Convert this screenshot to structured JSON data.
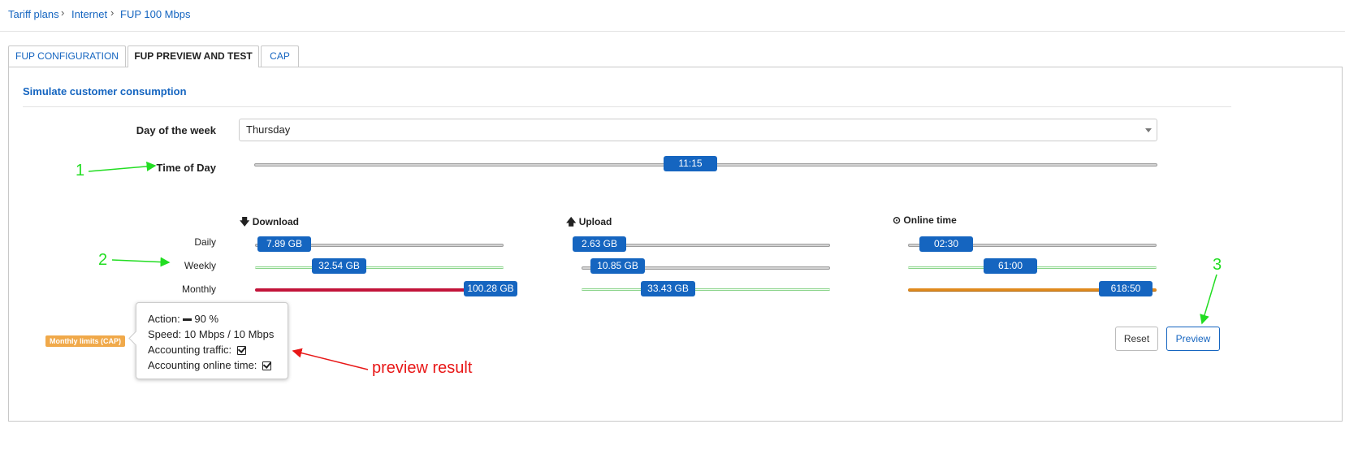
{
  "breadcrumb": [
    "Tariff plans",
    "Internet",
    "FUP 100 Mbps"
  ],
  "tabs": [
    "FUP CONFIGURATION",
    "FUP PREVIEW AND TEST",
    "CAP"
  ],
  "active_tab": "FUP PREVIEW AND TEST",
  "section_title": "Simulate customer consumption",
  "day_of_week": {
    "label": "Day of the week",
    "value": "Thursday"
  },
  "time_of_day": {
    "label": "Time of Day",
    "value": "11:15",
    "fraction": 0.48
  },
  "columns": {
    "download": "Download",
    "upload": "Upload",
    "online": "Online time"
  },
  "rows": [
    "Daily",
    "Weekly",
    "Monthly"
  ],
  "values": {
    "download": [
      "7.89 GB",
      "32.54 GB",
      "100.28 GB"
    ],
    "upload": [
      "2.63 GB",
      "10.85 GB",
      "33.43 GB"
    ],
    "online": [
      "02:30",
      "61:00",
      "618:50"
    ]
  },
  "buttons": {
    "reset": "Reset",
    "preview": "Preview"
  },
  "tooltip": {
    "action_label": "Action:",
    "action_value": "90 %",
    "speed": "Speed: 10 Mbps / 10 Mbps",
    "accounting_traffic": "Accounting traffic:",
    "accounting_online": "Accounting online time:"
  },
  "badge": "Monthly limits (CAP)",
  "annotations": {
    "one": "1",
    "two": "2",
    "three": "3",
    "preview_result": "preview result"
  },
  "colors": {
    "accent": "#1565c0",
    "red_bar": "#c2143a",
    "orange_bar": "#e08a1e",
    "badge": "#f0a94a",
    "annotation_green": "#22dd22",
    "annotation_red": "#e81717"
  }
}
